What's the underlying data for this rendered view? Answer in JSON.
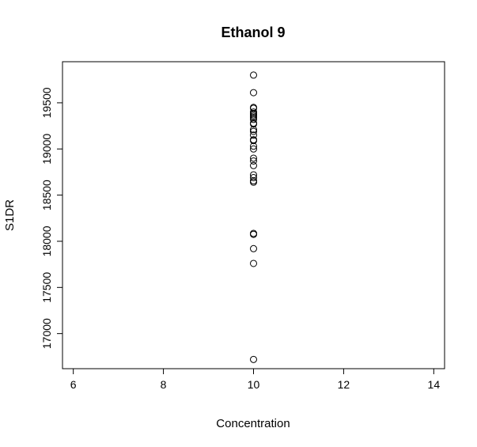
{
  "chart_data": {
    "type": "scatter",
    "title": "Ethanol 9",
    "xlabel": "Concentration",
    "ylabel": "S1DR",
    "xlim": [
      5.76,
      14.24
    ],
    "ylim": [
      16620,
      19945
    ],
    "x_ticks": [
      6,
      8,
      10,
      12,
      14
    ],
    "y_ticks": [
      17000,
      17500,
      18000,
      18500,
      19000,
      19500
    ],
    "grid": false,
    "legend": "none",
    "points": [
      {
        "x": 10,
        "y": 19800
      },
      {
        "x": 10,
        "y": 19610
      },
      {
        "x": 10,
        "y": 19450
      },
      {
        "x": 10,
        "y": 19440
      },
      {
        "x": 10,
        "y": 19400
      },
      {
        "x": 10,
        "y": 19385
      },
      {
        "x": 10,
        "y": 19370
      },
      {
        "x": 10,
        "y": 19355
      },
      {
        "x": 10,
        "y": 19340
      },
      {
        "x": 10,
        "y": 19320
      },
      {
        "x": 10,
        "y": 19280
      },
      {
        "x": 10,
        "y": 19270
      },
      {
        "x": 10,
        "y": 19210
      },
      {
        "x": 10,
        "y": 19190
      },
      {
        "x": 10,
        "y": 19150
      },
      {
        "x": 10,
        "y": 19100
      },
      {
        "x": 10,
        "y": 19090
      },
      {
        "x": 10,
        "y": 19030
      },
      {
        "x": 10,
        "y": 19000
      },
      {
        "x": 10,
        "y": 18900
      },
      {
        "x": 10,
        "y": 18870
      },
      {
        "x": 10,
        "y": 18820
      },
      {
        "x": 10,
        "y": 18720
      },
      {
        "x": 10,
        "y": 18690
      },
      {
        "x": 10,
        "y": 18655
      },
      {
        "x": 10,
        "y": 18640
      },
      {
        "x": 10,
        "y": 18085
      },
      {
        "x": 10,
        "y": 18075
      },
      {
        "x": 10,
        "y": 17920
      },
      {
        "x": 10,
        "y": 17760
      },
      {
        "x": 10,
        "y": 16720
      }
    ]
  }
}
